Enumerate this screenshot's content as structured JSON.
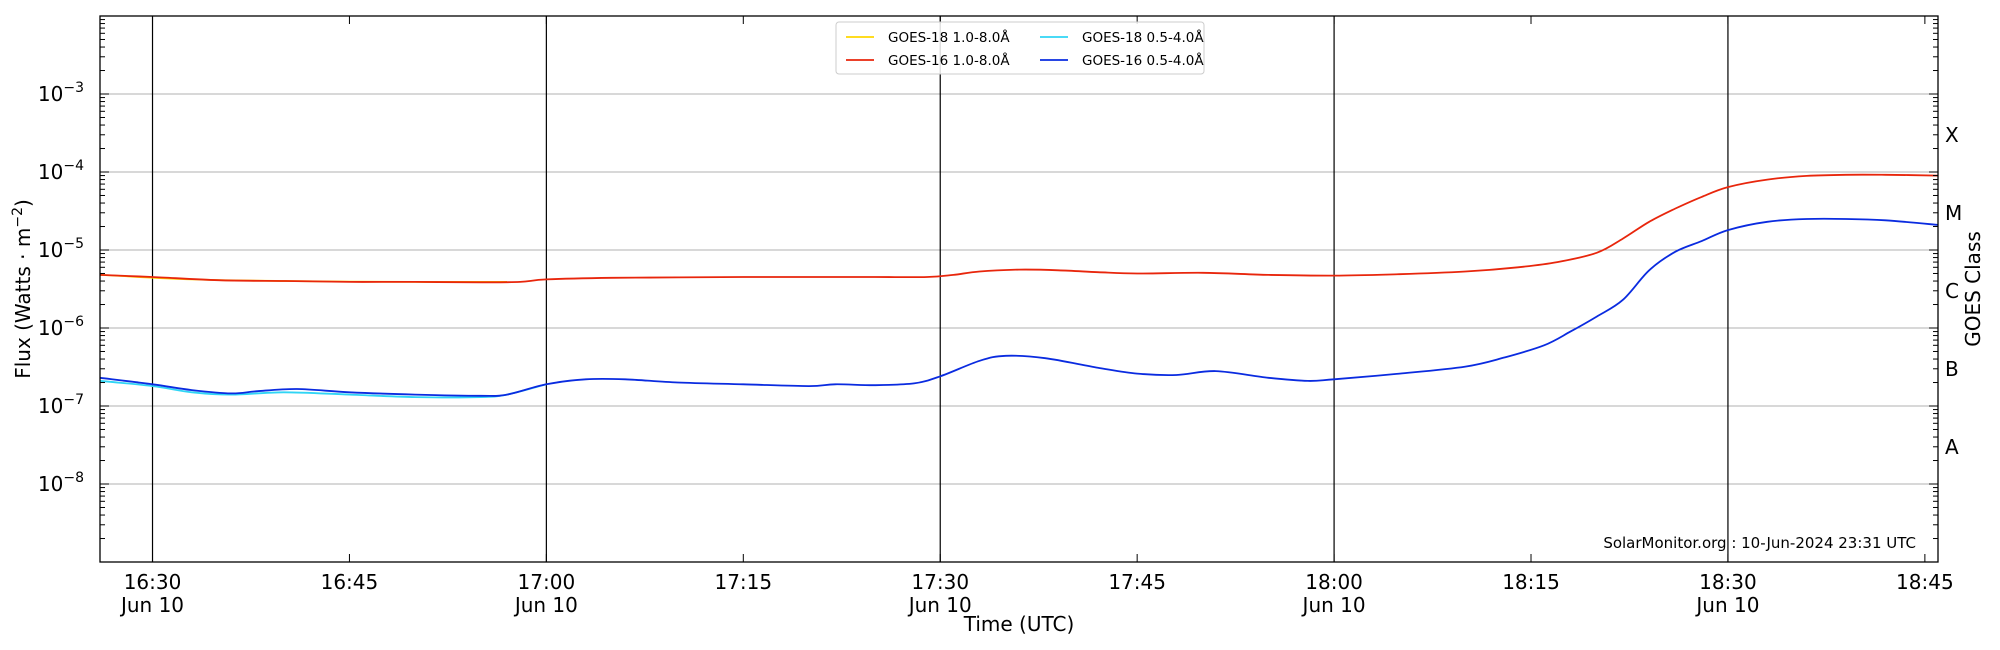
{
  "chart_data": {
    "type": "line",
    "title": "",
    "xlabel": "Time (UTC)",
    "ylabel_main": "Flux (Watts · m",
    "ylabel_sup": "−2",
    "ylabel_close": ")",
    "y2label": "GOES Class",
    "yscale": "log",
    "ylim": [
      1e-09,
      0.01
    ],
    "x_start": "16:26",
    "x_end": "18:46",
    "grid": "horizontal",
    "legend_placement": "top-center",
    "xticks": [
      {
        "time": "16:30",
        "label": "16:30",
        "date": "Jun 10"
      },
      {
        "time": "16:45",
        "label": "16:45",
        "date": ""
      },
      {
        "time": "17:00",
        "label": "17:00",
        "date": "Jun 10"
      },
      {
        "time": "17:15",
        "label": "17:15",
        "date": ""
      },
      {
        "time": "17:30",
        "label": "17:30",
        "date": "Jun 10"
      },
      {
        "time": "17:45",
        "label": "17:45",
        "date": ""
      },
      {
        "time": "18:00",
        "label": "18:00",
        "date": "Jun 10"
      },
      {
        "time": "18:15",
        "label": "18:15",
        "date": ""
      },
      {
        "time": "18:30",
        "label": "18:30",
        "date": "Jun 10"
      },
      {
        "time": "18:45",
        "label": "18:45",
        "date": ""
      }
    ],
    "yticks": [
      {
        "value": 1e-08,
        "base": "10",
        "exp": "−8"
      },
      {
        "value": 1e-07,
        "base": "10",
        "exp": "−7"
      },
      {
        "value": 1e-06,
        "base": "10",
        "exp": "−6"
      },
      {
        "value": 1e-05,
        "base": "10",
        "exp": "−5"
      },
      {
        "value": 0.0001,
        "base": "10",
        "exp": "−4"
      },
      {
        "value": 0.001,
        "base": "10",
        "exp": "−3"
      }
    ],
    "goes_classes": [
      {
        "label": "A",
        "value": 3e-08
      },
      {
        "label": "B",
        "value": 3e-07
      },
      {
        "label": "C",
        "value": 3e-06
      },
      {
        "label": "M",
        "value": 3e-05
      },
      {
        "label": "X",
        "value": 0.0003
      }
    ],
    "vertical_lines": [
      "16:30",
      "17:00",
      "17:30",
      "18:00",
      "18:30"
    ],
    "watermark": "SolarMonitor.org : 10-Jun-2024 23:31 UTC",
    "series": [
      {
        "name": "GOES-18 1.0-8.0Å",
        "color": "#ffd700",
        "points": [
          [
            "16:26",
            4.8e-06
          ],
          [
            "16:33",
            4.2e-06
          ],
          [
            "16:40",
            4e-06
          ],
          [
            "16:50",
            3.9e-06
          ],
          [
            "16:57",
            3.9e-06
          ]
        ]
      },
      {
        "name": "GOES-16 1.0-8.0Å",
        "color": "#e8260c",
        "points": [
          [
            "16:26",
            4.8e-06
          ],
          [
            "16:30",
            4.5e-06
          ],
          [
            "16:35",
            4.1e-06
          ],
          [
            "16:40",
            4e-06
          ],
          [
            "16:45",
            3.9e-06
          ],
          [
            "16:50",
            3.9e-06
          ],
          [
            "16:55",
            3.85e-06
          ],
          [
            "16:58",
            3.9e-06
          ],
          [
            "17:00",
            4.2e-06
          ],
          [
            "17:05",
            4.4e-06
          ],
          [
            "17:10",
            4.45e-06
          ],
          [
            "17:15",
            4.5e-06
          ],
          [
            "17:20",
            4.5e-06
          ],
          [
            "17:25",
            4.5e-06
          ],
          [
            "17:29",
            4.5e-06
          ],
          [
            "17:31",
            4.8e-06
          ],
          [
            "17:33",
            5.3e-06
          ],
          [
            "17:36",
            5.6e-06
          ],
          [
            "17:39",
            5.5e-06
          ],
          [
            "17:42",
            5.2e-06
          ],
          [
            "17:45",
            5e-06
          ],
          [
            "17:50",
            5.1e-06
          ],
          [
            "17:55",
            4.8e-06
          ],
          [
            "18:00",
            4.7e-06
          ],
          [
            "18:05",
            4.9e-06
          ],
          [
            "18:10",
            5.3e-06
          ],
          [
            "18:14",
            6e-06
          ],
          [
            "18:17",
            7e-06
          ],
          [
            "18:20",
            9.2e-06
          ],
          [
            "18:22",
            1.4e-05
          ],
          [
            "18:24",
            2.3e-05
          ],
          [
            "18:26",
            3.4e-05
          ],
          [
            "18:28",
            4.8e-05
          ],
          [
            "18:30",
            6.4e-05
          ],
          [
            "18:33",
            8e-05
          ],
          [
            "18:36",
            8.9e-05
          ],
          [
            "18:39",
            9.2e-05
          ],
          [
            "18:42",
            9.2e-05
          ],
          [
            "18:46",
            9e-05
          ]
        ]
      },
      {
        "name": "GOES-18 0.5-4.0Å",
        "color": "#30d5f5",
        "points": [
          [
            "16:26",
            2.1e-07
          ],
          [
            "16:30",
            1.8e-07
          ],
          [
            "16:33",
            1.5e-07
          ],
          [
            "16:36",
            1.4e-07
          ],
          [
            "16:40",
            1.5e-07
          ],
          [
            "16:45",
            1.4e-07
          ],
          [
            "16:50",
            1.3e-07
          ],
          [
            "16:55",
            1.3e-07
          ],
          [
            "16:57",
            1.4e-07
          ],
          [
            "17:00",
            1.9e-07
          ]
        ]
      },
      {
        "name": "GOES-16 0.5-4.0Å",
        "color": "#0a2be0",
        "points": [
          [
            "16:26",
            2.3e-07
          ],
          [
            "16:30",
            1.9e-07
          ],
          [
            "16:33",
            1.6e-07
          ],
          [
            "16:36",
            1.45e-07
          ],
          [
            "16:38",
            1.55e-07
          ],
          [
            "16:41",
            1.65e-07
          ],
          [
            "16:45",
            1.5e-07
          ],
          [
            "16:50",
            1.4e-07
          ],
          [
            "16:55",
            1.35e-07
          ],
          [
            "16:57",
            1.4e-07
          ],
          [
            "17:00",
            1.9e-07
          ],
          [
            "17:03",
            2.2e-07
          ],
          [
            "17:06",
            2.2e-07
          ],
          [
            "17:10",
            2e-07
          ],
          [
            "17:15",
            1.9e-07
          ],
          [
            "17:20",
            1.8e-07
          ],
          [
            "17:22",
            1.9e-07
          ],
          [
            "17:25",
            1.85e-07
          ],
          [
            "17:28",
            1.95e-07
          ],
          [
            "17:30",
            2.4e-07
          ],
          [
            "17:33",
            3.8e-07
          ],
          [
            "17:35",
            4.4e-07
          ],
          [
            "17:38",
            4.1e-07
          ],
          [
            "17:42",
            3.1e-07
          ],
          [
            "17:45",
            2.6e-07
          ],
          [
            "17:48",
            2.5e-07
          ],
          [
            "17:51",
            2.8e-07
          ],
          [
            "17:55",
            2.3e-07
          ],
          [
            "17:58",
            2.1e-07
          ],
          [
            "18:00",
            2.2e-07
          ],
          [
            "18:05",
            2.6e-07
          ],
          [
            "18:10",
            3.2e-07
          ],
          [
            "18:13",
            4.2e-07
          ],
          [
            "18:16",
            6e-07
          ],
          [
            "18:18",
            9e-07
          ],
          [
            "18:20",
            1.4e-06
          ],
          [
            "18:22",
            2.3e-06
          ],
          [
            "18:24",
            5.5e-06
          ],
          [
            "18:26",
            9.5e-06
          ],
          [
            "18:28",
            1.3e-05
          ],
          [
            "18:30",
            1.8e-05
          ],
          [
            "18:33",
            2.3e-05
          ],
          [
            "18:36",
            2.5e-05
          ],
          [
            "18:39",
            2.5e-05
          ],
          [
            "18:42",
            2.4e-05
          ],
          [
            "18:46",
            2.1e-05
          ]
        ]
      }
    ]
  }
}
